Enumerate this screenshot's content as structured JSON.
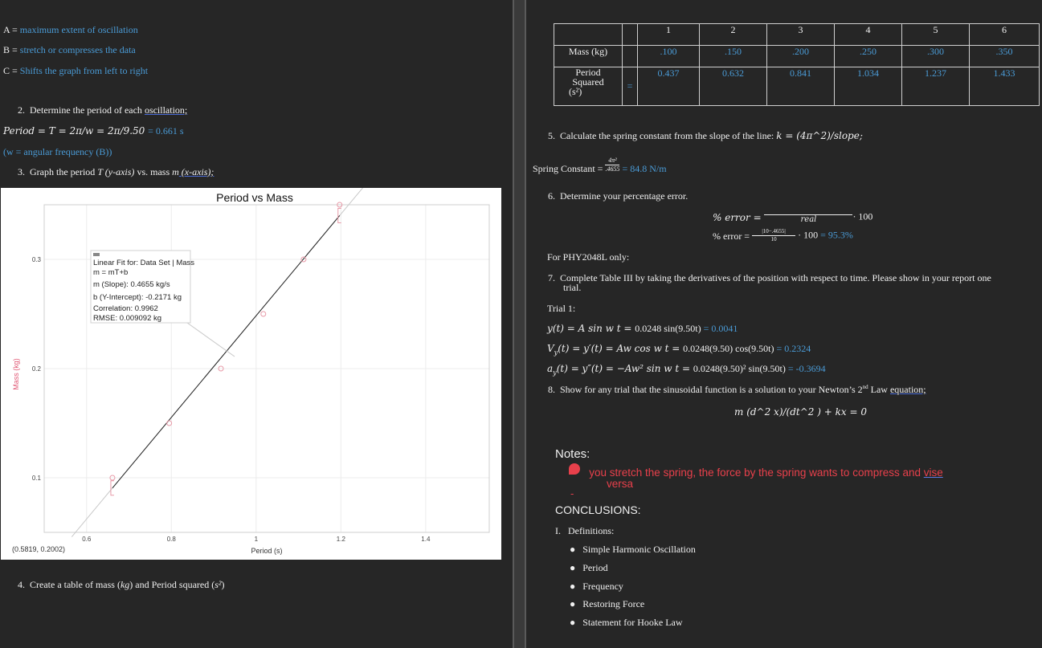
{
  "left": {
    "defs": [
      {
        "key": "A",
        "eq": " = ",
        "text": "maximum extent of oscillation"
      },
      {
        "key": "B",
        "eq": " = ",
        "text": "stretch or compresses the data"
      },
      {
        "key": "C",
        "eq": " = ",
        "text": "Shifts the graph from left to right"
      }
    ],
    "q2": {
      "num": "2.",
      "text": "Determine the period of each ",
      "ul": "oscillation;"
    },
    "period_eq": {
      "formula": "Period = T = 2π/w = 2π/9.50 ",
      "result": " = 0.661 s"
    },
    "w_note": "(w = angular frequency (B))",
    "q3": {
      "num": "3.",
      "pre": "Graph the period ",
      "T": "T",
      "mid": " (y-axis)",
      "vs": " vs. mass ",
      "m": "m",
      "post": " (x-axis);"
    },
    "q4": {
      "num": "4.",
      "text": "Create a table of mass (",
      "kg": "kg",
      "mid": ") and Period squared (",
      "unit": "s²",
      "end": ")"
    }
  },
  "chart_data": {
    "type": "scatter",
    "title": "Period vs Mass",
    "xlabel": "Period (s)",
    "ylabel": "Mass (kg)",
    "xlim": [
      0.5,
      1.55
    ],
    "ylim": [
      0.05,
      0.35
    ],
    "xticks": [
      "0.6",
      "0.8",
      "1",
      "1.2",
      "1.4"
    ],
    "yticks": [
      "0.1",
      "0.2",
      "0.3"
    ],
    "x": [
      0.661,
      0.795,
      0.917,
      1.017,
      1.112,
      1.197
    ],
    "y": [
      0.1,
      0.15,
      0.2,
      0.25,
      0.3,
      0.35
    ],
    "fit": {
      "slope": 0.4655,
      "intercept": -0.2171,
      "x_range": [
        0.661,
        1.197
      ]
    },
    "coord_readout": "(0.5819, 0.2002)",
    "grid": true,
    "fit_box": {
      "lines": [
        "Linear Fit for: Data Set | Mass",
        "m = mT+b",
        "m (Slope): 0.4655 kg/s",
        "b (Y-Intercept): -0.2171 kg",
        "Correlation: 0.9962",
        "RMSE: 0.009092 kg"
      ]
    },
    "colors": {
      "points": "#e89aa8",
      "fit": "#222222",
      "guide": "#c8c8c8",
      "ylabel": "#e05572"
    }
  },
  "table": {
    "headers": [
      "1",
      "2",
      "3",
      "4",
      "5",
      "6"
    ],
    "row1": {
      "label": "Mass (kg)",
      "values": [
        ".100",
        ".150",
        ".200",
        ".250",
        ".300",
        ".350"
      ]
    },
    "row2": {
      "label_lines": [
        "Period",
        "Squared",
        "(s²)"
      ],
      "eq": "=",
      "values": [
        "0.437",
        "0.632",
        "0.841",
        "1.034",
        "1.237",
        "1.433"
      ]
    }
  },
  "right": {
    "q5": {
      "num": "5.",
      "text": "Calculate the spring constant from the slope of the line: ",
      "formula": "k = (4π^2)/slope;"
    },
    "spring": {
      "label": "Spring Constant = ",
      "num": "4π²",
      "den": ".4655",
      "result": " = 84.8 N/m"
    },
    "q6": {
      "num": "6.",
      "text": "Determine your percentage error."
    },
    "err1": {
      "label": "% error = ",
      "den": "real",
      "tail": "· 100"
    },
    "err2": {
      "label": "% error = ",
      "num": "|10−.4655|",
      "den": "10",
      "tail": "· 100",
      "result": " = 95.3%"
    },
    "phy": "For PHY2048L only:",
    "q7": {
      "num": "7.",
      "line1": "Complete Table III by taking the derivatives of the position with respect to time. Please show in your report one",
      "line2": "trial."
    },
    "trial": "Trial 1:",
    "eq_y": {
      "lhs": "y(t) = A sin w t  =  ",
      "rhs": "0.0248 sin(9.50t)",
      "res": " = 0.0041"
    },
    "eq_v": {
      "lhs": "V",
      "sub": "y",
      "mid": "(t) = y′(t) = Aw cos w t  =  ",
      "rhs": "0.0248(9.50) cos(9.50t)",
      "res": " = 0.2324"
    },
    "eq_a": {
      "lhs": "a",
      "sub": "y",
      "mid": "(t) = y″(t) = −Aw² sin w t  =  ",
      "rhs": "0.0248(9.50)² sin(9.50t)",
      "res": " = -0.3694"
    },
    "q8": {
      "num": "8.",
      "text": "Show for any trial that the sinusoidal function is a solution to your Newton’s 2",
      "sup": "nd",
      "text2": " Law ",
      "ul": "equation;"
    },
    "newton": "m (d^2 x)/(dt^2 ) + kx = 0",
    "notes_title": "Notes:",
    "note1": {
      "dash": "-",
      "line1": "you stretch the spring, the force by the spring wants to compress and ",
      "ul": "vise",
      "line2": "versa"
    },
    "note2_dash": "-",
    "conclusions": "CONCLUSIONS:",
    "defs_heading": {
      "num": "I.",
      "text": "Definitions:"
    },
    "bullets": [
      "Simple Harmonic Oscillation",
      "Period",
      "Frequency",
      "Restoring Force",
      "Statement for Hooke Law"
    ]
  }
}
